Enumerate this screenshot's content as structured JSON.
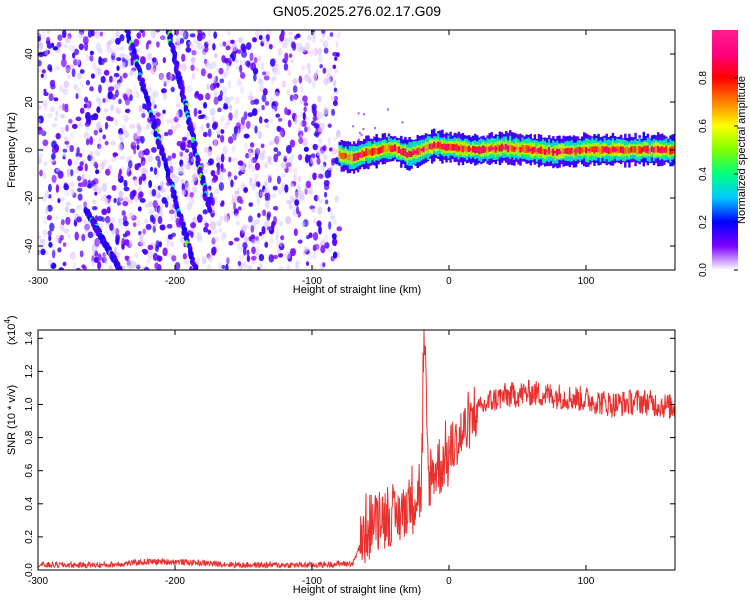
{
  "title": "GN05.2025.276.02.17.G09",
  "colors": {
    "snr_line": "#e8302e",
    "axis": "#000000"
  },
  "chart_data": [
    {
      "type": "heatmap",
      "name": "spectrogram",
      "xlabel": "Height of straight line (km)",
      "ylabel": "Frequency (Hz)",
      "xlim": [
        -300,
        165
      ],
      "ylim": [
        -50,
        50
      ],
      "xticks": [
        -300,
        -200,
        -100,
        0,
        100
      ],
      "xtick_labels": [
        "-300",
        "-200",
        "-100",
        "0",
        "100"
      ],
      "yticks": [
        -40,
        -20,
        0,
        20,
        40
      ],
      "ytick_labels": [
        "-40",
        "-20",
        "0",
        "20",
        "40"
      ],
      "colorbar": {
        "label": "Normalized spectral amplitude",
        "range": [
          0.0,
          1.0
        ],
        "ticks": [
          0.0,
          0.2,
          0.4,
          0.6,
          0.8
        ],
        "tick_labels": [
          "0.0",
          "0.2",
          "0.4",
          "0.6",
          "0.8"
        ],
        "colormap": [
          "#ffffff",
          "#7b00ff",
          "#0000ff",
          "#00c8ff",
          "#00ff80",
          "#7fff00",
          "#ffff00",
          "#ff8000",
          "#ff0000",
          "#ff0080",
          "#ff1e8c"
        ]
      },
      "regions": [
        {
          "description_type": "noise",
          "x_range": [
            -300,
            -80
          ],
          "y_range": [
            -50,
            50
          ],
          "amplitude": 0.2
        },
        {
          "description_type": "tone",
          "x_range": [
            -80,
            165
          ],
          "frequency": 0,
          "amplitude": 0.7
        }
      ],
      "streaks": [
        {
          "x_start": -235,
          "y_start": 50,
          "x_end": -185,
          "y_end": -50
        },
        {
          "x_start": -205,
          "y_start": 50,
          "x_end": -175,
          "y_end": -25
        },
        {
          "x_start": -265,
          "y_start": -25,
          "x_end": -240,
          "y_end": -50
        }
      ],
      "signal_path": {
        "x": [
          -80,
          -70,
          -60,
          -50,
          -40,
          -30,
          -20,
          -10,
          0,
          20,
          40,
          60,
          80,
          100,
          120,
          140,
          165
        ],
        "y": [
          -2,
          -3,
          -1,
          0,
          1,
          -2,
          0,
          2,
          1,
          0,
          1,
          0,
          -1,
          0,
          0,
          0,
          0
        ]
      }
    },
    {
      "type": "line",
      "name": "snr",
      "xlabel": "Height of straight line (km)",
      "ylabel": "SNR (10 * v/v)",
      "y_multiplier_label": "(x10",
      "y_multiplier_exp": "4",
      "xlim": [
        -300,
        165
      ],
      "ylim": [
        0,
        1.45
      ],
      "xticks": [
        -300,
        -200,
        -100,
        0,
        100
      ],
      "xtick_labels": [
        "-300",
        "-200",
        "-100",
        "0",
        "100"
      ],
      "yticks": [
        0.0,
        0.2,
        0.4,
        0.6,
        0.8,
        1.0,
        1.2,
        1.4
      ],
      "ytick_labels": [
        "0.0",
        "0.2",
        "0.4",
        "0.6",
        "0.8",
        "1.0",
        "1.2",
        "1.4"
      ],
      "series": [
        {
          "color": "#e8302e",
          "x": [
            -300,
            -250,
            -220,
            -200,
            -150,
            -100,
            -70,
            -60,
            -50,
            -40,
            -30,
            -25,
            -20,
            -18,
            -15,
            -10,
            0,
            10,
            20,
            30,
            40,
            60,
            80,
            100,
            120,
            140,
            165
          ],
          "y": [
            0.03,
            0.03,
            0.05,
            0.05,
            0.03,
            0.03,
            0.04,
            0.25,
            0.35,
            0.3,
            0.4,
            0.45,
            0.5,
            1.45,
            0.55,
            0.6,
            0.7,
            0.82,
            0.95,
            1.02,
            1.05,
            1.07,
            1.05,
            1.03,
            1.0,
            1.02,
            0.98
          ]
        }
      ]
    }
  ]
}
